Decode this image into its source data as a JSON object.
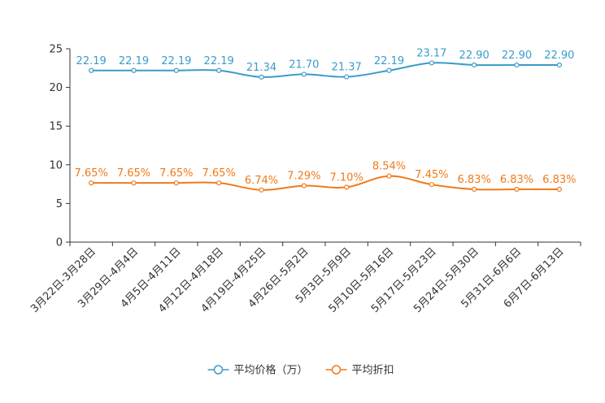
{
  "chart_data": {
    "type": "line",
    "title": "",
    "xlabel": "",
    "ylabel": "",
    "ylim": [
      0,
      25
    ],
    "yticks": [
      0,
      5,
      10,
      15,
      20,
      25
    ],
    "grid": false,
    "legend_position": "bottom-center",
    "categories": [
      "3月22日-3月28日",
      "3月29日-4月4日",
      "4月5日-4月11日",
      "4月12日-4月18日",
      "4月19日-4月25日",
      "4月26日-5月2日",
      "5月3日-5月9日",
      "5月10日-5月16日",
      "5月17日-5月23日",
      "5月24日-5月30日",
      "5月31日-6月6日",
      "6月7日-6月13日"
    ],
    "series": [
      {
        "name": "平均价格（万）",
        "color": "#3a9ccb",
        "values": [
          22.19,
          22.19,
          22.19,
          22.19,
          21.34,
          21.7,
          21.37,
          22.19,
          23.17,
          22.9,
          22.9,
          22.9
        ],
        "labels": [
          "22.19",
          "22.19",
          "22.19",
          "22.19",
          "21.34",
          "21.70",
          "21.37",
          "22.19",
          "23.17",
          "22.90",
          "22.90",
          "22.90"
        ]
      },
      {
        "name": "平均折扣",
        "color": "#f07a1a",
        "values": [
          7.65,
          7.65,
          7.65,
          7.65,
          6.74,
          7.29,
          7.1,
          8.54,
          7.45,
          6.83,
          6.83,
          6.83
        ],
        "labels": [
          "7.65%",
          "7.65%",
          "7.65%",
          "7.65%",
          "6.74%",
          "7.29%",
          "7.10%",
          "8.54%",
          "7.45%",
          "6.83%",
          "6.83%",
          "6.83%"
        ]
      }
    ]
  }
}
